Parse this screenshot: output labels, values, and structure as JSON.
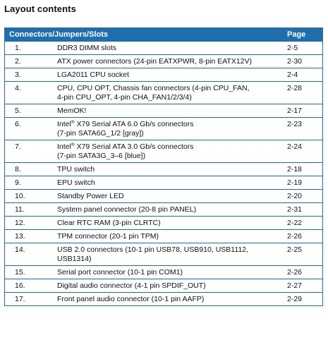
{
  "title": "Layout contents",
  "table": {
    "headers": [
      "Connectors/Jumpers/Slots",
      "Page"
    ],
    "rows": [
      {
        "num": "1.",
        "lines": [
          "DDR3 DIMM slots"
        ],
        "page": "2-5"
      },
      {
        "num": "2.",
        "lines": [
          "ATX power connectors (24-pin EATXPWR, 8-pin EATX12V)"
        ],
        "page": "2-30"
      },
      {
        "num": "3.",
        "lines": [
          "LGA2011 CPU socket"
        ],
        "page": "2-4"
      },
      {
        "num": "4.",
        "lines": [
          "CPU, CPU OPT, Chassis fan connectors (4-pin CPU_FAN,",
          "4-pin CPU_OPT, 4-pin CHA_FAN1/2/3/4)"
        ],
        "page": "2-28"
      },
      {
        "num": "5.",
        "lines": [
          "MemOK!"
        ],
        "page": "2-17"
      },
      {
        "num": "6.",
        "lines": [
          "Intel|®| X79 Serial ATA 6.0 Gb/s connectors",
          "(7-pin SATA6G_1/2 [gray])"
        ],
        "page": "2-23"
      },
      {
        "num": "7.",
        "lines": [
          "Intel|®| X79 Serial ATA 3.0 Gb/s connectors",
          "(7-pin SATA3G_3–6 [blue])"
        ],
        "page": "2-24"
      },
      {
        "num": "8.",
        "lines": [
          "TPU switch"
        ],
        "page": "2-18"
      },
      {
        "num": "9.",
        "lines": [
          "EPU switch"
        ],
        "page": "2-19"
      },
      {
        "num": "10.",
        "lines": [
          "Standby Power LED"
        ],
        "page": "2-20"
      },
      {
        "num": "11.",
        "lines": [
          "System panel connector (20-8 pin PANEL)"
        ],
        "page": "2-31"
      },
      {
        "num": "12.",
        "lines": [
          "Clear RTC RAM (3-pin CLRTC)"
        ],
        "page": "2-22"
      },
      {
        "num": "13.",
        "lines": [
          "TPM connector (20-1 pin TPM)"
        ],
        "page": "2-26"
      },
      {
        "num": "14.",
        "lines": [
          "USB 2.0 connectors (10-1 pin USB78, USB910, USB1112,",
          "USB1314)"
        ],
        "page": "2-25"
      },
      {
        "num": "15.",
        "lines": [
          "Serial port connector (10-1 pin COM1)"
        ],
        "page": "2-26"
      },
      {
        "num": "16.",
        "lines": [
          "Digital audio connector (4-1 pin SPDIF_OUT)"
        ],
        "page": "2-27"
      },
      {
        "num": "17.",
        "lines": [
          "Front panel audio connector (10-1 pin AAFP)"
        ],
        "page": "2-29"
      }
    ]
  },
  "colors": {
    "header_bg": "#1f6fae",
    "header_text": "#ffffff",
    "rule": "#1f6fae"
  }
}
